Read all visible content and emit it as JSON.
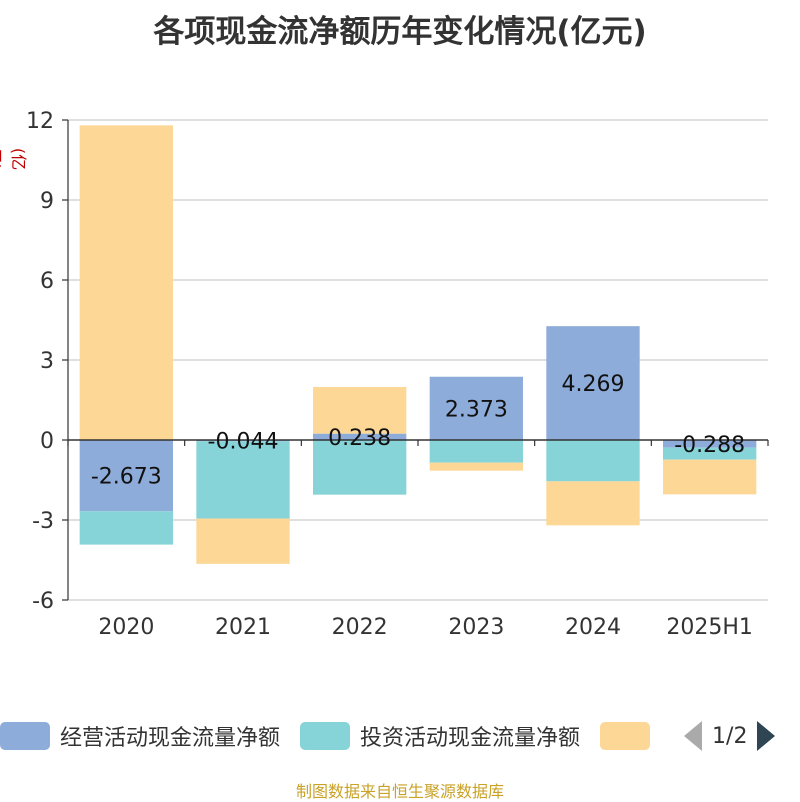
{
  "chart_data": {
    "type": "bar",
    "stacked": true,
    "title": "各项现金流净额历年变化情况(亿元)",
    "ylabel": "(亿元)",
    "categories": [
      "2020",
      "2021",
      "2022",
      "2023",
      "2024",
      "2025H1"
    ],
    "yticks": [
      "12",
      "9",
      "6",
      "3",
      "0",
      "-3",
      "-6"
    ],
    "ylim": [
      -6,
      12
    ],
    "grid": true,
    "legend_position": "bottom",
    "series": [
      {
        "name": "经营活动现金流量净额",
        "color": "#8eacd9",
        "values": [
          -2.673,
          -0.044,
          0.238,
          2.373,
          4.269,
          -0.288
        ],
        "labels": [
          "-2.673",
          "-0.044",
          "0.238",
          "2.373",
          "4.269",
          "-0.288"
        ]
      },
      {
        "name": "投资活动现金流量净额",
        "color": "#87d4d8",
        "values": [
          -1.25,
          -2.9,
          -2.05,
          -0.85,
          -1.55,
          -0.45
        ]
      },
      {
        "name": "",
        "color": "#fdd796",
        "values": [
          11.8,
          -1.7,
          1.75,
          -0.3,
          -1.65,
          -1.3
        ]
      }
    ]
  },
  "legend": {
    "page": "1/2"
  },
  "source": "制图数据来自恒生聚源数据库"
}
